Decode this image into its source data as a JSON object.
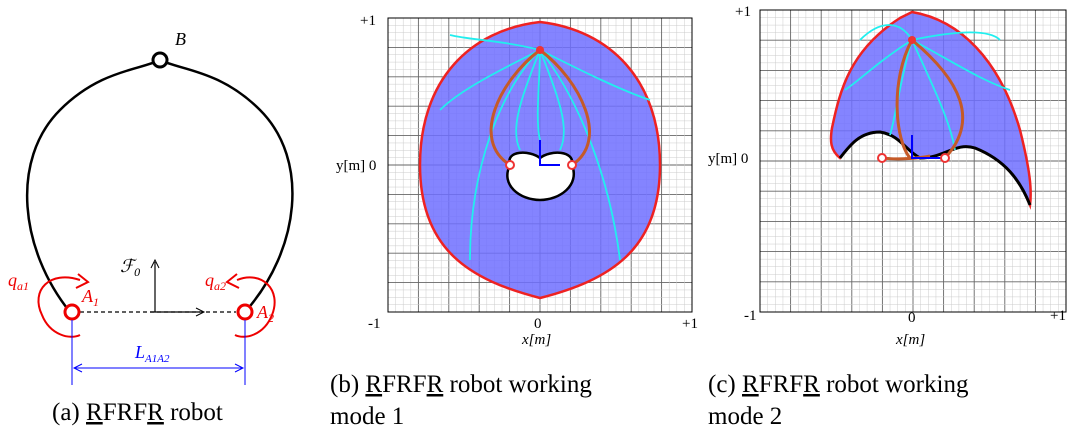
{
  "panel_a": {
    "labels": {
      "B": "B",
      "qa1": {
        "main": "q",
        "sub": "a1"
      },
      "A1": {
        "main": "A",
        "sub": "1"
      },
      "F0": {
        "main": "ℱ",
        "sub": "0"
      },
      "qa2": {
        "main": "q",
        "sub": "a2"
      },
      "A2": {
        "main": "A",
        "sub": "2"
      },
      "L": {
        "main": "L",
        "sub": "A1A2"
      }
    },
    "caption": [
      "(a) ",
      "R",
      "FRF",
      "R",
      " robot"
    ]
  },
  "panel_b": {
    "y_top": "+1",
    "y_label": "y[m] 0",
    "x_left": "-1",
    "x_mid": "0",
    "x_right": "+1",
    "x_label": "x[m]",
    "caption": [
      "(b) ",
      "R",
      "FRF",
      "R",
      " robot working",
      "mode 1"
    ]
  },
  "panel_c": {
    "y_top": "+1",
    "y_label": "y[m] 0",
    "x_left": "-1",
    "x_mid": "0",
    "x_right": "+1",
    "x_label": "x[m]",
    "caption": [
      "(c) ",
      "R",
      "FRF",
      "R",
      " robot working",
      "mode 2"
    ]
  }
}
